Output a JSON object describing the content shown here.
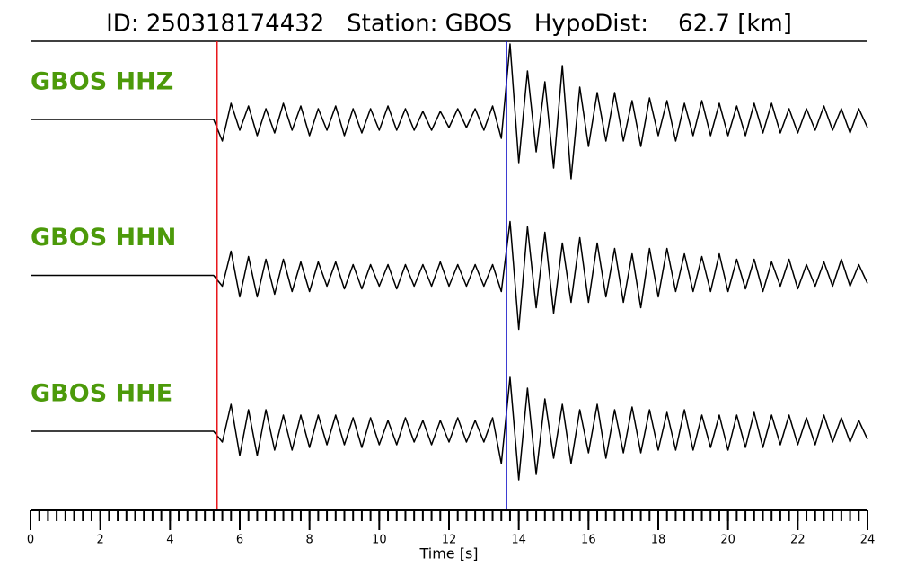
{
  "chart_data": {
    "type": "seismogram",
    "title": "ID: 250318174432   Station: GBOS   HypoDist:    62.7 [km]",
    "xlabel": "Time [s]",
    "xlim": [
      0,
      24
    ],
    "xticks": [
      0,
      2,
      4,
      6,
      8,
      10,
      12,
      14,
      16,
      18,
      20,
      22,
      24
    ],
    "minor_xtick_step": 0.25,
    "p_pick_time": 5.35,
    "p_pick_color": "#e8161b",
    "s_pick_time": 13.65,
    "s_pick_color": "#1414c8",
    "label_color": "#4c9a0a",
    "x": [
      0,
      0.25,
      0.5,
      0.75,
      1,
      1.25,
      1.5,
      1.75,
      2,
      2.25,
      2.5,
      2.75,
      3,
      3.25,
      3.5,
      3.75,
      4,
      4.25,
      4.5,
      4.75,
      5,
      5.25,
      5.5,
      5.75,
      6,
      6.25,
      6.5,
      6.75,
      7,
      7.25,
      7.5,
      7.75,
      8,
      8.25,
      8.5,
      8.75,
      9,
      9.25,
      9.5,
      9.75,
      10,
      10.25,
      10.5,
      10.75,
      11,
      11.25,
      11.5,
      11.75,
      12,
      12.25,
      12.5,
      12.75,
      13,
      13.25,
      13.5,
      13.75,
      14,
      14.25,
      14.5,
      14.75,
      15,
      15.25,
      15.5,
      15.75,
      16,
      16.25,
      16.5,
      16.75,
      17,
      17.25,
      17.5,
      17.75,
      18,
      18.25,
      18.5,
      18.75,
      19,
      19.25,
      19.5,
      19.75,
      20,
      20.25,
      20.5,
      20.75,
      21,
      21.25,
      21.5,
      21.75,
      22,
      22.25,
      22.5,
      22.75,
      23,
      23.25,
      23.5,
      23.75,
      24
    ],
    "series": [
      {
        "name": "GBOS HHZ",
        "color": "#000000",
        "values": [
          0,
          0,
          0,
          0,
          0,
          0,
          0,
          0,
          0,
          0,
          0,
          0,
          0,
          0,
          0,
          0,
          0,
          0,
          0,
          0,
          0,
          0,
          -0.4,
          0.3,
          -0.2,
          0.25,
          -0.3,
          0.2,
          -0.25,
          0.3,
          -0.2,
          0.25,
          -0.3,
          0.2,
          -0.2,
          0.25,
          -0.3,
          0.2,
          -0.25,
          0.2,
          -0.2,
          0.25,
          -0.2,
          0.2,
          -0.2,
          0.15,
          -0.2,
          0.15,
          -0.15,
          0.2,
          -0.15,
          0.2,
          -0.2,
          0.25,
          -0.35,
          1.4,
          -0.8,
          0.9,
          -0.6,
          0.7,
          -0.9,
          1.0,
          -1.1,
          0.6,
          -0.5,
          0.5,
          -0.4,
          0.5,
          -0.4,
          0.35,
          -0.5,
          0.4,
          -0.3,
          0.35,
          -0.4,
          0.3,
          -0.3,
          0.35,
          -0.3,
          0.3,
          -0.3,
          0.25,
          -0.3,
          0.3,
          -0.25,
          0.3,
          -0.25,
          0.2,
          -0.25,
          0.2,
          -0.2,
          0.25,
          -0.2,
          0.2,
          -0.25,
          0.2,
          -0.15
        ]
      },
      {
        "name": "GBOS HHN",
        "color": "#000000",
        "values": [
          0,
          0,
          0,
          0,
          0,
          0,
          0,
          0,
          0,
          0,
          0,
          0,
          0,
          0,
          0,
          0,
          0,
          0,
          0,
          0,
          0,
          0,
          -0.2,
          0.45,
          -0.4,
          0.35,
          -0.4,
          0.3,
          -0.35,
          0.3,
          -0.3,
          0.25,
          -0.3,
          0.25,
          -0.2,
          0.25,
          -0.25,
          0.2,
          -0.25,
          0.2,
          -0.2,
          0.2,
          -0.25,
          0.2,
          -0.2,
          0.2,
          -0.2,
          0.25,
          -0.2,
          0.2,
          -0.2,
          0.2,
          -0.2,
          0.2,
          -0.3,
          1.0,
          -1.0,
          0.9,
          -0.6,
          0.8,
          -0.7,
          0.6,
          -0.5,
          0.7,
          -0.5,
          0.6,
          -0.4,
          0.5,
          -0.5,
          0.4,
          -0.6,
          0.5,
          -0.4,
          0.5,
          -0.3,
          0.4,
          -0.3,
          0.35,
          -0.3,
          0.4,
          -0.3,
          0.3,
          -0.25,
          0.3,
          -0.3,
          0.25,
          -0.2,
          0.3,
          -0.25,
          0.2,
          -0.2,
          0.25,
          -0.2,
          0.3,
          -0.2,
          0.2,
          -0.15
        ]
      },
      {
        "name": "GBOS HHE",
        "color": "#000000",
        "values": [
          0,
          0,
          0,
          0,
          0,
          0,
          0,
          0,
          0,
          0,
          0,
          0,
          0,
          0,
          0,
          0,
          0,
          0,
          0,
          0,
          0,
          0,
          -0.2,
          0.5,
          -0.45,
          0.4,
          -0.45,
          0.4,
          -0.35,
          0.3,
          -0.35,
          0.3,
          -0.3,
          0.3,
          -0.25,
          0.3,
          -0.25,
          0.25,
          -0.3,
          0.25,
          -0.25,
          0.2,
          -0.25,
          0.25,
          -0.2,
          0.2,
          -0.25,
          0.2,
          -0.2,
          0.25,
          -0.2,
          0.2,
          -0.2,
          0.25,
          -0.6,
          1.0,
          -0.9,
          0.8,
          -0.8,
          0.6,
          -0.5,
          0.5,
          -0.6,
          0.4,
          -0.4,
          0.5,
          -0.5,
          0.4,
          -0.4,
          0.45,
          -0.4,
          0.4,
          -0.35,
          0.35,
          -0.35,
          0.4,
          -0.35,
          0.3,
          -0.3,
          0.3,
          -0.35,
          0.3,
          -0.3,
          0.35,
          -0.3,
          0.3,
          -0.25,
          0.3,
          -0.25,
          0.25,
          -0.25,
          0.3,
          -0.2,
          0.25,
          -0.2,
          0.2,
          -0.15
        ]
      }
    ]
  }
}
